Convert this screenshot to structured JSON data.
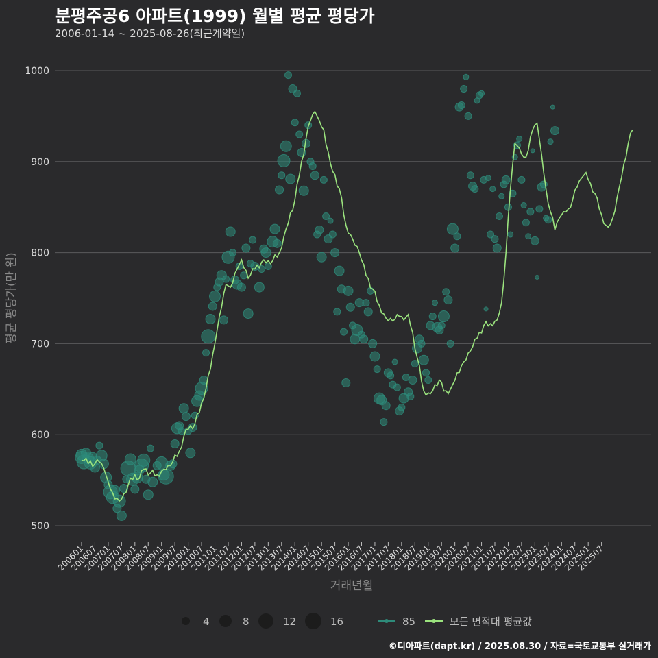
{
  "title": "분평주공6 아파트(1999) 월별 평균 평당가",
  "subtitle": "2006-01-14 ~ 2025-08-26(최근계약일)",
  "caption": "©디아파트(dapt.kr) / 2025.08.30 / 자료=국토교통부 실거래가",
  "colors": {
    "background": "#2a2a2c",
    "grid": "#5a5a5c",
    "point": "#2e8b7a",
    "line": "#9be37e"
  },
  "chart_data": {
    "type": "line",
    "title": "분평주공6 아파트(1999) 월별 평균 평당가",
    "xlabel": "거래년월",
    "ylabel": "평균 평당가(만 원)",
    "ylim": [
      500,
      1000
    ],
    "yticks": [
      500,
      600,
      700,
      800,
      900,
      1000
    ],
    "xticks": [
      "200601",
      "200607",
      "200701",
      "200707",
      "200801",
      "200807",
      "200901",
      "200907",
      "201001",
      "201007",
      "201101",
      "201107",
      "201201",
      "201207",
      "201301",
      "201307",
      "201401",
      "201407",
      "201501",
      "201507",
      "201601",
      "201607",
      "201701",
      "201707",
      "201801",
      "201807",
      "201901",
      "201907",
      "202001",
      "202007",
      "202101",
      "202107",
      "202201",
      "202207",
      "202301",
      "202307",
      "202401",
      "202407",
      "202501",
      "202507"
    ],
    "legend": {
      "size_title": "",
      "size_values": [
        "4",
        "8",
        "12",
        "16"
      ],
      "series": [
        {
          "name": "85",
          "kind": "point"
        },
        {
          "name": "모든 면적대 평균값",
          "kind": "line"
        }
      ]
    },
    "series": [
      {
        "name": "모든 면적대 평균값",
        "anchors": [
          [
            0,
            572
          ],
          [
            6,
            568
          ],
          [
            8,
            570
          ],
          [
            10,
            563
          ],
          [
            12,
            548
          ],
          [
            14,
            536
          ],
          [
            17,
            527
          ],
          [
            19,
            535
          ],
          [
            21,
            545
          ],
          [
            24,
            556
          ],
          [
            26,
            552
          ],
          [
            28,
            562
          ],
          [
            31,
            558
          ],
          [
            34,
            556
          ],
          [
            37,
            562
          ],
          [
            40,
            566
          ],
          [
            44,
            582
          ],
          [
            46,
            598
          ],
          [
            48,
            606
          ],
          [
            51,
            612
          ],
          [
            55,
            640
          ],
          [
            58,
            672
          ],
          [
            60,
            700
          ],
          [
            62,
            730
          ],
          [
            65,
            765
          ],
          [
            67,
            762
          ],
          [
            70,
            782
          ],
          [
            72,
            792
          ],
          [
            75,
            772
          ],
          [
            78,
            782
          ],
          [
            82,
            792
          ],
          [
            85,
            788
          ],
          [
            89,
            800
          ],
          [
            92,
            826
          ],
          [
            96,
            858
          ],
          [
            98,
            885
          ],
          [
            101,
            925
          ],
          [
            103,
            945
          ],
          [
            105,
            955
          ],
          [
            107,
            945
          ],
          [
            109,
            935
          ],
          [
            112,
            898
          ],
          [
            116,
            870
          ],
          [
            119,
            830
          ],
          [
            122,
            815
          ],
          [
            125,
            800
          ],
          [
            128,
            775
          ],
          [
            131,
            760
          ],
          [
            134,
            742
          ],
          [
            137,
            728
          ],
          [
            140,
            725
          ],
          [
            143,
            730
          ],
          [
            145,
            726
          ],
          [
            147,
            732
          ],
          [
            149,
            712
          ],
          [
            151,
            685
          ],
          [
            154,
            648
          ],
          [
            157,
            645
          ],
          [
            159,
            655
          ],
          [
            161,
            660
          ],
          [
            163,
            648
          ],
          [
            165,
            645
          ],
          [
            167,
            655
          ],
          [
            169,
            668
          ],
          [
            172,
            680
          ],
          [
            175,
            692
          ],
          [
            178,
            706
          ],
          [
            181,
            720
          ],
          [
            184,
            722
          ],
          [
            187,
            726
          ],
          [
            189,
            745
          ],
          [
            191,
            800
          ],
          [
            193,
            870
          ],
          [
            195,
            920
          ],
          [
            197,
            915
          ],
          [
            199,
            905
          ],
          [
            201,
            912
          ],
          [
            203,
            935
          ],
          [
            205,
            942
          ],
          [
            207,
            908
          ],
          [
            209,
            870
          ],
          [
            211,
            845
          ],
          [
            213,
            825
          ],
          [
            215,
            838
          ],
          [
            217,
            845
          ],
          [
            219,
            848
          ],
          [
            221,
            858
          ],
          [
            223,
            872
          ],
          [
            225,
            882
          ],
          [
            227,
            888
          ],
          [
            229,
            876
          ],
          [
            231,
            865
          ],
          [
            233,
            848
          ],
          [
            235,
            832
          ],
          [
            237,
            828
          ],
          [
            239,
            838
          ],
          [
            242,
            872
          ],
          [
            244,
            897
          ],
          [
            246,
            920
          ],
          [
            248,
            935
          ]
        ]
      }
    ],
    "points": [
      [
        0,
        575,
        9
      ],
      [
        0,
        578,
        8
      ],
      [
        1,
        570,
        10
      ],
      [
        2,
        580,
        7
      ],
      [
        3,
        574,
        8
      ],
      [
        4,
        569,
        9
      ],
      [
        5,
        576,
        6
      ],
      [
        6,
        564,
        7
      ],
      [
        7,
        572,
        6
      ],
      [
        8,
        588,
        5
      ],
      [
        9,
        577,
        8
      ],
      [
        10,
        568,
        7
      ],
      [
        11,
        553,
        8
      ],
      [
        12,
        545,
        6
      ],
      [
        13,
        537,
        10
      ],
      [
        14,
        531,
        9
      ],
      [
        15,
        539,
        7
      ],
      [
        16,
        519,
        6
      ],
      [
        17,
        527,
        9
      ],
      [
        18,
        511,
        7
      ],
      [
        19,
        541,
        6
      ],
      [
        20,
        551,
        5
      ],
      [
        21,
        563,
        11
      ],
      [
        22,
        573,
        8
      ],
      [
        23,
        551,
        9
      ],
      [
        24,
        540,
        6
      ],
      [
        25,
        553,
        8
      ],
      [
        26,
        561,
        7
      ],
      [
        27,
        566,
        10
      ],
      [
        28,
        572,
        9
      ],
      [
        29,
        551,
        6
      ],
      [
        30,
        534,
        7
      ],
      [
        31,
        585,
        5
      ],
      [
        32,
        548,
        7
      ],
      [
        34,
        566,
        6
      ],
      [
        36,
        569,
        9
      ],
      [
        37,
        556,
        8
      ],
      [
        38,
        554,
        11
      ],
      [
        40,
        566,
        7
      ],
      [
        41,
        568,
        6
      ],
      [
        42,
        590,
        6
      ],
      [
        43,
        607,
        8
      ],
      [
        44,
        610,
        6
      ],
      [
        45,
        604,
        5
      ],
      [
        46,
        629,
        7
      ],
      [
        47,
        620,
        6
      ],
      [
        48,
        604,
        5
      ],
      [
        49,
        580,
        7
      ],
      [
        50,
        608,
        6
      ],
      [
        51,
        621,
        5
      ],
      [
        52,
        637,
        8
      ],
      [
        53,
        643,
        7
      ],
      [
        54,
        651,
        9
      ],
      [
        55,
        660,
        6
      ],
      [
        56,
        690,
        5
      ],
      [
        57,
        708,
        10
      ],
      [
        58,
        727,
        7
      ],
      [
        59,
        741,
        6
      ],
      [
        60,
        752,
        8
      ],
      [
        61,
        762,
        5
      ],
      [
        62,
        768,
        6
      ],
      [
        63,
        775,
        7
      ],
      [
        64,
        726,
        6
      ],
      [
        65,
        771,
        5
      ],
      [
        66,
        795,
        9
      ],
      [
        67,
        823,
        7
      ],
      [
        68,
        800,
        5
      ],
      [
        69,
        770,
        6
      ],
      [
        70,
        765,
        7
      ],
      [
        71,
        785,
        5
      ],
      [
        72,
        762,
        6
      ],
      [
        73,
        775,
        5
      ],
      [
        74,
        805,
        6
      ],
      [
        75,
        733,
        7
      ],
      [
        76,
        788,
        5
      ],
      [
        77,
        814,
        5
      ],
      [
        78,
        785,
        6
      ],
      [
        80,
        762,
        7
      ],
      [
        81,
        782,
        5
      ],
      [
        82,
        804,
        6
      ],
      [
        83,
        800,
        7
      ],
      [
        84,
        785,
        5
      ],
      [
        86,
        812,
        8
      ],
      [
        87,
        826,
        7
      ],
      [
        88,
        810,
        6
      ],
      [
        89,
        869,
        6
      ],
      [
        90,
        885,
        5
      ],
      [
        91,
        901,
        9
      ],
      [
        92,
        917,
        8
      ],
      [
        93,
        995,
        5
      ],
      [
        94,
        881,
        7
      ],
      [
        95,
        980,
        6
      ],
      [
        96,
        943,
        5
      ],
      [
        97,
        975,
        5
      ],
      [
        98,
        930,
        5
      ],
      [
        99,
        910,
        6
      ],
      [
        100,
        868,
        7
      ],
      [
        101,
        920,
        6
      ],
      [
        102,
        940,
        5
      ],
      [
        103,
        900,
        5
      ],
      [
        104,
        895,
        5
      ],
      [
        105,
        885,
        6
      ],
      [
        106,
        820,
        5
      ],
      [
        107,
        825,
        6
      ],
      [
        108,
        795,
        7
      ],
      [
        109,
        880,
        5
      ],
      [
        110,
        840,
        5
      ],
      [
        111,
        815,
        6
      ],
      [
        112,
        835,
        4
      ],
      [
        113,
        820,
        5
      ],
      [
        114,
        800,
        6
      ],
      [
        115,
        735,
        5
      ],
      [
        116,
        780,
        7
      ],
      [
        117,
        760,
        6
      ],
      [
        118,
        713,
        5
      ],
      [
        119,
        657,
        6
      ],
      [
        120,
        758,
        7
      ],
      [
        121,
        740,
        6
      ],
      [
        122,
        720,
        5
      ],
      [
        123,
        705,
        7
      ],
      [
        124,
        715,
        8
      ],
      [
        125,
        745,
        6
      ],
      [
        126,
        710,
        5
      ],
      [
        127,
        705,
        6
      ],
      [
        128,
        745,
        5
      ],
      [
        129,
        735,
        6
      ],
      [
        130,
        758,
        5
      ],
      [
        131,
        700,
        6
      ],
      [
        132,
        686,
        7
      ],
      [
        133,
        672,
        5
      ],
      [
        134,
        640,
        8
      ],
      [
        135,
        638,
        7
      ],
      [
        136,
        614,
        5
      ],
      [
        137,
        632,
        6
      ],
      [
        138,
        668,
        6
      ],
      [
        139,
        665,
        5
      ],
      [
        140,
        655,
        5
      ],
      [
        141,
        680,
        4
      ],
      [
        142,
        652,
        5
      ],
      [
        143,
        626,
        6
      ],
      [
        144,
        630,
        5
      ],
      [
        145,
        640,
        7
      ],
      [
        146,
        663,
        5
      ],
      [
        147,
        647,
        6
      ],
      [
        148,
        642,
        5
      ],
      [
        149,
        660,
        6
      ],
      [
        150,
        678,
        5
      ],
      [
        151,
        695,
        7
      ],
      [
        152,
        705,
        6
      ],
      [
        153,
        700,
        5
      ],
      [
        154,
        682,
        7
      ],
      [
        155,
        668,
        5
      ],
      [
        156,
        660,
        5
      ],
      [
        157,
        720,
        6
      ],
      [
        158,
        730,
        5
      ],
      [
        159,
        745,
        4
      ],
      [
        160,
        718,
        7
      ],
      [
        161,
        715,
        6
      ],
      [
        162,
        720,
        5
      ],
      [
        163,
        730,
        8
      ],
      [
        164,
        757,
        5
      ],
      [
        165,
        748,
        6
      ],
      [
        166,
        700,
        5
      ],
      [
        167,
        826,
        8
      ],
      [
        168,
        805,
        6
      ],
      [
        169,
        818,
        5
      ],
      [
        170,
        960,
        6
      ],
      [
        171,
        962,
        5
      ],
      [
        172,
        980,
        5
      ],
      [
        173,
        993,
        4
      ],
      [
        174,
        950,
        5
      ],
      [
        175,
        885,
        5
      ],
      [
        176,
        873,
        6
      ],
      [
        177,
        870,
        5
      ],
      [
        178,
        967,
        4
      ],
      [
        179,
        973,
        5
      ],
      [
        180,
        975,
        4
      ],
      [
        181,
        880,
        5
      ],
      [
        182,
        738,
        3
      ],
      [
        183,
        882,
        4
      ],
      [
        184,
        820,
        5
      ],
      [
        185,
        870,
        4
      ],
      [
        186,
        815,
        5
      ],
      [
        187,
        805,
        6
      ],
      [
        188,
        840,
        5
      ],
      [
        189,
        862,
        4
      ],
      [
        190,
        875,
        5
      ],
      [
        191,
        880,
        6
      ],
      [
        192,
        850,
        5
      ],
      [
        193,
        820,
        4
      ],
      [
        194,
        865,
        5
      ],
      [
        195,
        905,
        4
      ],
      [
        196,
        918,
        5
      ],
      [
        197,
        925,
        4
      ],
      [
        198,
        880,
        5
      ],
      [
        199,
        852,
        4
      ],
      [
        200,
        833,
        5
      ],
      [
        201,
        818,
        4
      ],
      [
        202,
        845,
        5
      ],
      [
        203,
        912,
        3
      ],
      [
        204,
        813,
        6
      ],
      [
        205,
        773,
        3
      ],
      [
        206,
        848,
        5
      ],
      [
        207,
        872,
        6
      ],
      [
        208,
        875,
        5
      ],
      [
        209,
        838,
        4
      ],
      [
        210,
        836,
        5
      ],
      [
        211,
        922,
        4
      ],
      [
        212,
        960,
        3
      ],
      [
        213,
        934,
        6
      ]
    ]
  }
}
